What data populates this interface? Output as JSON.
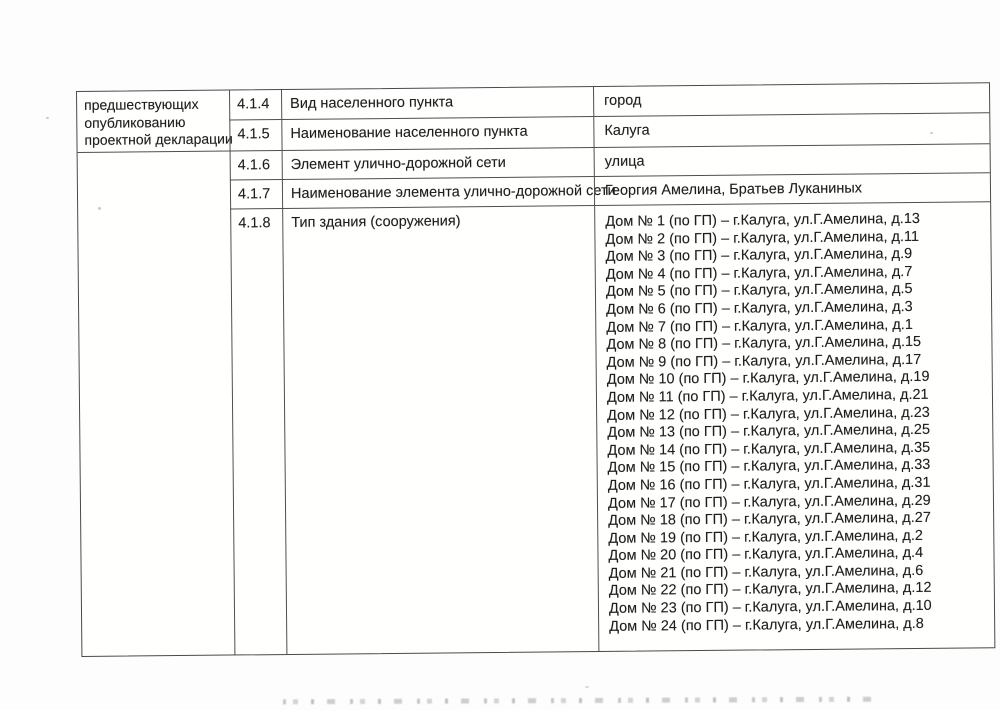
{
  "left_note": {
    "lines": [
      "предшествующих",
      "опубликованию",
      "проектной декларации"
    ]
  },
  "table": {
    "rows": [
      {
        "num": "4.1.4",
        "label": "Вид населенного пункта",
        "value": "город"
      },
      {
        "num": "4.1.5",
        "label": "Наименование населенного пункта",
        "value": "Калуга"
      },
      {
        "num": "4.1.6",
        "label": "Элемент улично-дорожной сети",
        "value": "улица"
      },
      {
        "num": "4.1.7",
        "label": "Наименование элемента улично-дорожной сети",
        "value": "Георгия Амелина, Братьев Луканиных"
      },
      {
        "num": "4.1.8",
        "label": "Тип здания (сооружения)",
        "value_lines": [
          "Дом № 1 (по ГП) – г.Калуга, ул.Г.Амелина, д.13",
          "Дом № 2 (по ГП) – г.Калуга, ул.Г.Амелина, д.11",
          "Дом № 3 (по ГП) – г.Калуга, ул.Г.Амелина, д.9",
          "Дом № 4 (по ГП) – г.Калуга, ул.Г.Амелина, д.7",
          "Дом № 5 (по ГП) – г.Калуга, ул.Г.Амелина, д.5",
          "Дом № 6 (по ГП) – г.Калуга, ул.Г.Амелина, д.3",
          "Дом № 7 (по ГП) – г.Калуга, ул.Г.Амелина, д.1",
          "Дом № 8 (по ГП) – г.Калуга, ул.Г.Амелина, д.15",
          "Дом № 9 (по ГП) – г.Калуга, ул.Г.Амелина, д.17",
          "Дом № 10 (по ГП) – г.Калуга, ул.Г.Амелина, д.19",
          "Дом № 11 (по ГП) – г.Калуга, ул.Г.Амелина, д.21",
          "Дом № 12 (по ГП) – г.Калуга, ул.Г.Амелина, д.23",
          "Дом № 13 (по ГП) – г.Калуга, ул.Г.Амелина, д.25",
          "Дом № 14 (по ГП) – г.Калуга, ул.Г.Амелина, д.35",
          "Дом № 15 (по ГП) – г.Калуга, ул.Г.Амелина, д.33",
          "Дом № 16 (по ГП) – г.Калуга, ул.Г.Амелина, д.31",
          "Дом № 17 (по ГП) – г.Калуга, ул.Г.Амелина, д.29",
          "Дом № 18 (по ГП) – г.Калуга, ул.Г.Амелина, д.27",
          "Дом № 19 (по ГП) – г.Калуга, ул.Г.Амелина, д.2",
          "Дом № 20 (по ГП) – г.Калуга, ул.Г.Амелина, д.4",
          "Дом № 21 (по ГП) – г.Калуга, ул.Г.Амелина, д.6",
          "Дом № 22 (по ГП) – г.Калуга, ул.Г.Амелина, д.12",
          "Дом № 23 (по ГП) – г.Калуга, ул.Г.Амелина, д.10",
          "Дом № 24 (по ГП) – г.Калуга, ул.Г.Амелина, д.8"
        ]
      }
    ]
  },
  "colors": {
    "text": "#1e1e1e",
    "border": "#4f4f4f",
    "page_background": "#fdfdfd"
  }
}
